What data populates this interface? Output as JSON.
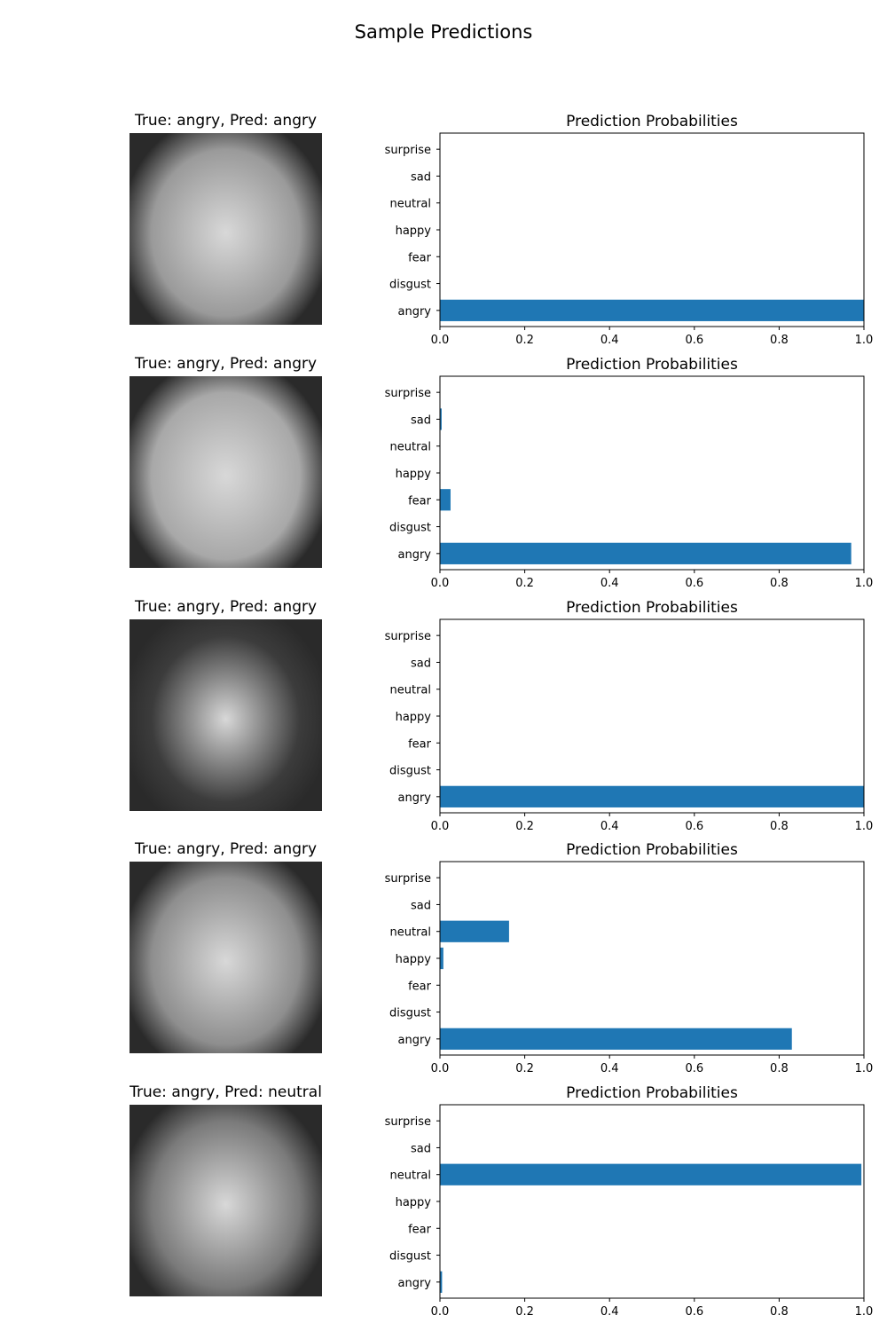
{
  "figure": {
    "suptitle": "Sample Predictions"
  },
  "chart_data": [
    {
      "type": "bar",
      "orientation": "horizontal",
      "title": "Prediction Probabilities",
      "image_title": "True: angry, Pred: angry",
      "categories": [
        "angry",
        "disgust",
        "fear",
        "happy",
        "neutral",
        "sad",
        "surprise"
      ],
      "values": [
        1.0,
        0.0,
        0.0,
        0.0,
        0.0,
        0.0,
        0.0
      ],
      "xlim": [
        0,
        1.0
      ],
      "xticks": [
        "0.0",
        "0.2",
        "0.4",
        "0.6",
        "0.8",
        "1.0"
      ]
    },
    {
      "type": "bar",
      "orientation": "horizontal",
      "title": "Prediction Probabilities",
      "image_title": "True: angry, Pred: angry",
      "categories": [
        "angry",
        "disgust",
        "fear",
        "happy",
        "neutral",
        "sad",
        "surprise"
      ],
      "values": [
        0.97,
        0.0,
        0.025,
        0.0,
        0.0,
        0.004,
        0.0
      ],
      "xlim": [
        0,
        1.0
      ],
      "xticks": [
        "0.0",
        "0.2",
        "0.4",
        "0.6",
        "0.8",
        "1.0"
      ]
    },
    {
      "type": "bar",
      "orientation": "horizontal",
      "title": "Prediction Probabilities",
      "image_title": "True: angry, Pred: angry",
      "categories": [
        "angry",
        "disgust",
        "fear",
        "happy",
        "neutral",
        "sad",
        "surprise"
      ],
      "values": [
        1.0,
        0.0,
        0.0,
        0.0,
        0.0,
        0.0,
        0.0
      ],
      "xlim": [
        0,
        1.0
      ],
      "xticks": [
        "0.0",
        "0.2",
        "0.4",
        "0.6",
        "0.8",
        "1.0"
      ]
    },
    {
      "type": "bar",
      "orientation": "horizontal",
      "title": "Prediction Probabilities",
      "image_title": "True: angry, Pred: angry",
      "categories": [
        "angry",
        "disgust",
        "fear",
        "happy",
        "neutral",
        "sad",
        "surprise"
      ],
      "values": [
        0.83,
        0.0,
        0.0,
        0.008,
        0.163,
        0.0,
        0.0
      ],
      "xlim": [
        0,
        1.0
      ],
      "xticks": [
        "0.0",
        "0.2",
        "0.4",
        "0.6",
        "0.8",
        "1.0"
      ]
    },
    {
      "type": "bar",
      "orientation": "horizontal",
      "title": "Prediction Probabilities",
      "image_title": "True: angry, Pred: neutral",
      "categories": [
        "angry",
        "disgust",
        "fear",
        "happy",
        "neutral",
        "sad",
        "surprise"
      ],
      "values": [
        0.005,
        0.0,
        0.0,
        0.0,
        0.994,
        0.0,
        0.0
      ],
      "xlim": [
        0,
        1.0
      ],
      "xticks": [
        "0.0",
        "0.2",
        "0.4",
        "0.6",
        "0.8",
        "1.0"
      ]
    }
  ],
  "style": {
    "bar_color": "#1f77b4",
    "axis_color": "#000000",
    "face_fill": [
      "#9a9a9a",
      "#a8a8a8",
      "#3c3c3c",
      "#8e8e8e",
      "#7a7a7a"
    ]
  }
}
